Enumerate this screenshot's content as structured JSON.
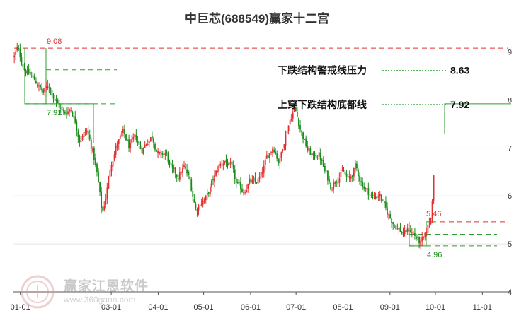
{
  "title": "中巨芯(688549)赢家十二宫",
  "watermark": {
    "brand": "赢家江恩软件",
    "url": "www.360gann.com"
  },
  "chart_data": {
    "type": "candlestick",
    "title": "中巨芯(688549)赢家十二宫",
    "x_ticks": [
      "01-01",
      "03-01",
      "04-01",
      "05-01",
      "06-01",
      "07-01",
      "08-01",
      "09-01",
      "10-01",
      "11-01"
    ],
    "y_ticks": [
      "9",
      "8",
      "7",
      "6",
      "5",
      "4"
    ],
    "ylim": [
      4,
      9.2
    ],
    "annotations": [
      {
        "label": "下跌结构警戒线压力",
        "value": "8.63"
      },
      {
        "label": "上穿下跌结构底部线",
        "value": "7.92"
      }
    ],
    "price_labels": {
      "high_label": "9.08",
      "left_low_label": "7.91",
      "low_label": "4.96",
      "recent_label": "5.46"
    },
    "reference_lines": [
      {
        "value": 9.08,
        "color": "#e03030",
        "style": "dashed"
      },
      {
        "value": 8.63,
        "color": "#2e9e2e",
        "style": "dashed"
      },
      {
        "value": 7.92,
        "color": "#2e9e2e",
        "style": "dashed"
      },
      {
        "value": 5.46,
        "color": "#e03030",
        "style": "dashed"
      },
      {
        "value": 5.2,
        "color": "#2e9e2e",
        "style": "dashed"
      },
      {
        "value": 4.96,
        "color": "#2e9e2e",
        "style": "dashed"
      }
    ],
    "close_path": [
      [
        "2023-12-28",
        8.9
      ],
      [
        "2023-12-30",
        9.05
      ],
      [
        "2024-01-04",
        8.65
      ],
      [
        "2024-01-08",
        8.5
      ],
      [
        "2024-01-12",
        8.35
      ],
      [
        "2024-01-16",
        8.15
      ],
      [
        "2024-01-20",
        8.3
      ],
      [
        "2024-01-25",
        7.95
      ],
      [
        "2024-01-30",
        7.7
      ],
      [
        "2024-02-03",
        7.85
      ],
      [
        "2024-02-06",
        7.6
      ],
      [
        "2024-02-09",
        7.2
      ],
      [
        "2024-02-14",
        7.35
      ],
      [
        "2024-02-18",
        6.9
      ],
      [
        "2024-02-21",
        6.4
      ],
      [
        "2024-02-24",
        5.6
      ],
      [
        "2024-02-27",
        6.1
      ],
      [
        "2024-03-01",
        6.7
      ],
      [
        "2024-03-05",
        7.1
      ],
      [
        "2024-03-09",
        7.3
      ],
      [
        "2024-03-13",
        7.0
      ],
      [
        "2024-03-17",
        7.2
      ],
      [
        "2024-03-21",
        6.95
      ],
      [
        "2024-03-25",
        7.15
      ],
      [
        "2024-03-28",
        7.25
      ],
      [
        "2024-04-02",
        6.8
      ],
      [
        "2024-04-06",
        6.9
      ],
      [
        "2024-04-10",
        6.5
      ],
      [
        "2024-04-14",
        6.4
      ],
      [
        "2024-04-18",
        6.6
      ],
      [
        "2024-04-22",
        6.3
      ],
      [
        "2024-04-26",
        5.7
      ],
      [
        "2024-04-29",
        5.9
      ],
      [
        "2024-05-03",
        5.95
      ],
      [
        "2024-05-07",
        6.3
      ],
      [
        "2024-05-11",
        6.6
      ],
      [
        "2024-05-15",
        6.75
      ],
      [
        "2024-05-19",
        6.6
      ],
      [
        "2024-05-23",
        6.2
      ],
      [
        "2024-05-27",
        6.1
      ],
      [
        "2024-05-31",
        6.3
      ],
      [
        "2024-06-04",
        6.25
      ],
      [
        "2024-06-08",
        6.4
      ],
      [
        "2024-06-12",
        6.8
      ],
      [
        "2024-06-16",
        7.05
      ],
      [
        "2024-06-20",
        6.7
      ],
      [
        "2024-06-24",
        7.3
      ],
      [
        "2024-06-27",
        7.6
      ],
      [
        "2024-06-30",
        7.85
      ],
      [
        "2024-07-04",
        7.4
      ],
      [
        "2024-07-08",
        7.0
      ],
      [
        "2024-07-12",
        6.8
      ],
      [
        "2024-07-16",
        6.9
      ],
      [
        "2024-07-20",
        6.5
      ],
      [
        "2024-07-24",
        6.2
      ],
      [
        "2024-07-28",
        6.4
      ],
      [
        "2024-08-01",
        6.5
      ],
      [
        "2024-08-05",
        6.3
      ],
      [
        "2024-08-09",
        6.6
      ],
      [
        "2024-08-13",
        6.3
      ],
      [
        "2024-08-17",
        6.1
      ],
      [
        "2024-08-21",
        5.95
      ],
      [
        "2024-08-25",
        6.05
      ],
      [
        "2024-08-29",
        5.7
      ],
      [
        "2024-09-02",
        5.5
      ],
      [
        "2024-09-06",
        5.35
      ],
      [
        "2024-09-10",
        5.2
      ],
      [
        "2024-09-14",
        5.3
      ],
      [
        "2024-09-18",
        5.15
      ],
      [
        "2024-09-21",
        5.0
      ],
      [
        "2024-09-24",
        5.1
      ],
      [
        "2024-09-26",
        5.35
      ],
      [
        "2024-09-28",
        5.55
      ],
      [
        "2024-09-29",
        6.0
      ],
      [
        "2024-09-30",
        6.6
      ]
    ]
  }
}
